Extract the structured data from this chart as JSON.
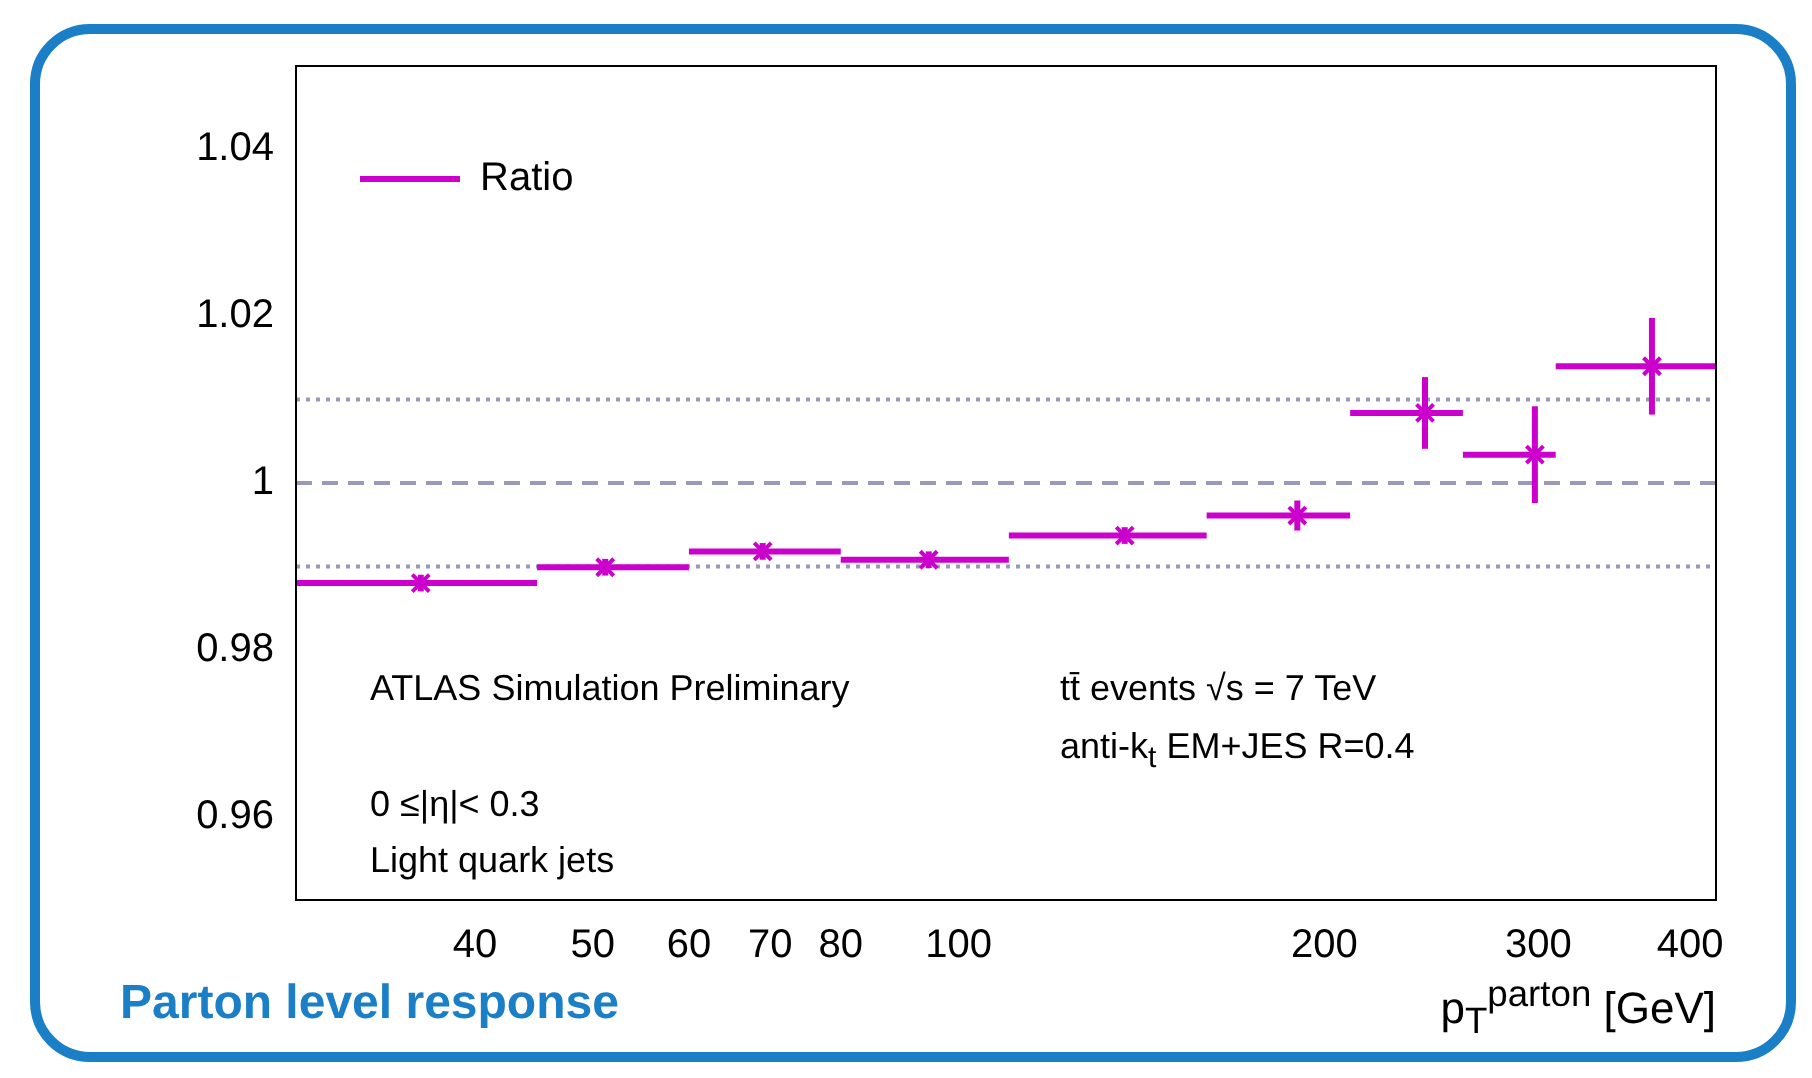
{
  "chart_data": {
    "type": "scatter",
    "xlabel": "p$_{T}$$^{parton}$ [GeV]",
    "log": "x",
    "xlim": [
      28.5,
      420
    ],
    "xticks": [
      40,
      50,
      60,
      70,
      80,
      100,
      200,
      300,
      400
    ],
    "ylim": [
      0.95,
      1.05
    ],
    "yticks": [
      0.96,
      0.98,
      1,
      1.02,
      1.04
    ],
    "grid": false,
    "legend": "top left",
    "marker": "cross",
    "x": [
      36.1,
      51.2,
      69,
      94.5,
      137,
      190,
      242,
      298,
      372
    ],
    "series": [
      {
        "name": "Ratio",
        "color": "#cc00cc",
        "values": [
          0.988,
          0.9899,
          0.9918,
          0.9908,
          0.9937,
          0.9961,
          1.0084,
          1.0034,
          1.014
        ],
        "errors": [
          0.001,
          0.001,
          0.001,
          0.001,
          0.001,
          0.0018,
          0.0043,
          0.0058,
          0.0058
        ],
        "xerrors": [
          [
            28.5,
            45
          ],
          [
            45,
            60
          ],
          [
            60,
            80
          ],
          [
            80,
            110
          ],
          [
            110,
            160
          ],
          [
            160,
            210
          ],
          [
            210,
            260
          ],
          [
            260,
            310
          ],
          [
            310,
            420
          ]
        ]
      }
    ],
    "ref_lines": [
      {
        "axis": "y",
        "value": 1,
        "color": "#9999bb",
        "line_style": "dashed"
      },
      {
        "axis": "y",
        "value": 0.99,
        "color": "#9999bb",
        "line_style": "dotted"
      },
      {
        "axis": "y",
        "value": 1.01,
        "color": "#9999bb",
        "line_style": "dotted"
      }
    ],
    "annotations": [
      "ATLAS Simulation Preliminary",
      "0 ≤|η|< 0.3",
      "Light quark jets",
      "tt̄ events   √s = 7 TeV",
      "anti-k$_{t}$ EM+JES R=0.4",
      "Parton level response"
    ]
  }
}
